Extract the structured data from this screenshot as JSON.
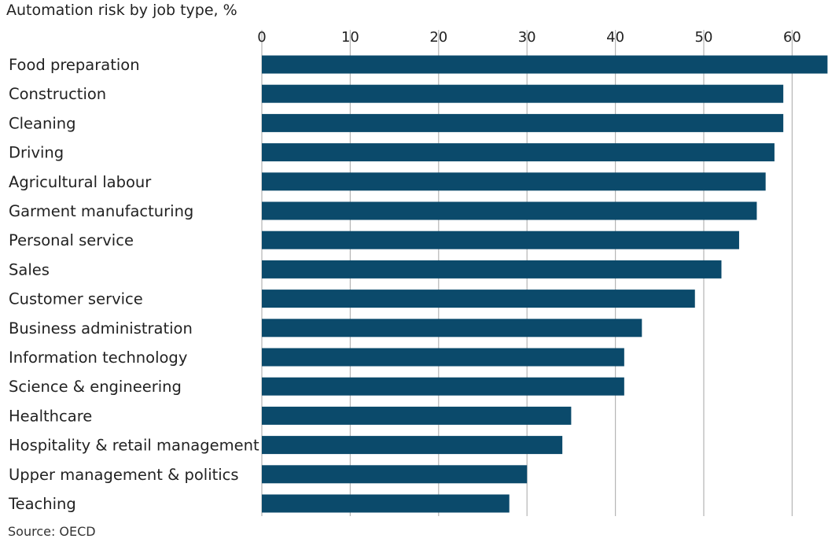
{
  "chart_data": {
    "type": "bar",
    "orientation": "horizontal",
    "title": "Automation risk by job type, %",
    "source": "Source: OECD",
    "categories": [
      "Food preparation",
      "Construction",
      "Cleaning",
      "Driving",
      "Agricultural labour",
      "Garment manufacturing",
      "Personal service",
      "Sales",
      "Customer service",
      "Business administration",
      "Information technology",
      "Science & engineering",
      "Healthcare",
      "Hospitality & retail management",
      "Upper management & politics",
      "Teaching"
    ],
    "values": [
      64,
      59,
      59,
      58,
      57,
      56,
      54,
      52,
      49,
      43,
      41,
      41,
      35,
      34,
      30,
      28
    ],
    "xlim": [
      0,
      64
    ],
    "xticks": [
      0,
      10,
      20,
      30,
      40,
      50,
      60
    ],
    "xtick_position": "top",
    "grid": true,
    "bar_color": "#0b4a6b",
    "grid_color": "#b5b5b5"
  }
}
